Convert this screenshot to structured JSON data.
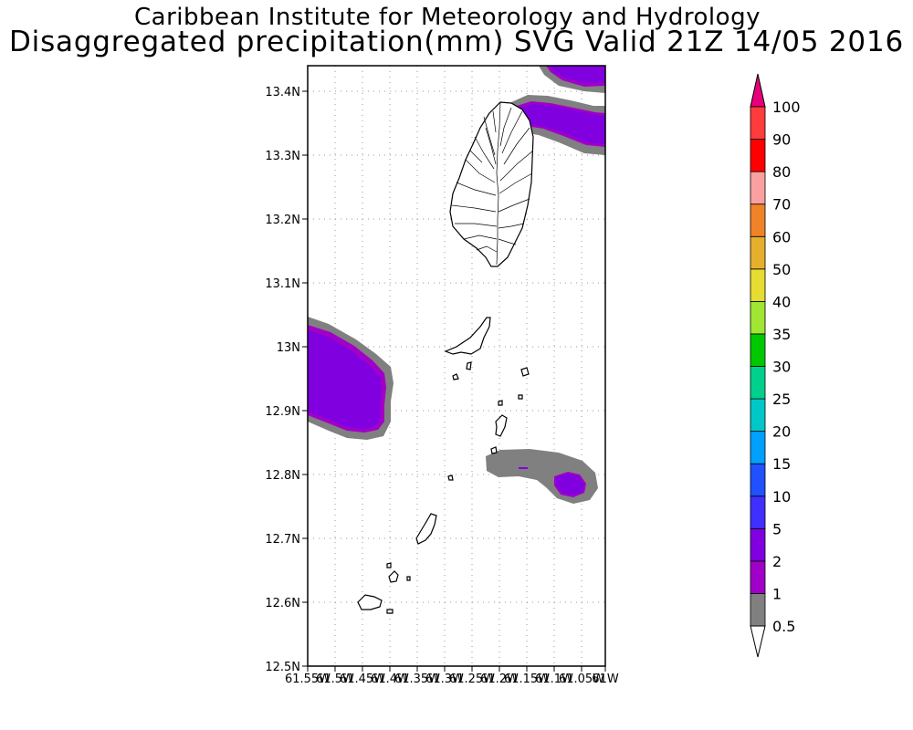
{
  "header": {
    "institution": "Caribbean Institute for Meteorology and Hydrology",
    "product": "Disaggregated precipitation(mm) SVG Valid 21Z 14/05 2016"
  },
  "map": {
    "lat_labels": [
      "13.4N",
      "13.3N",
      "13.2N",
      "13.1N",
      "13N",
      "12.9N",
      "12.8N",
      "12.7N",
      "12.6N",
      "12.5N"
    ],
    "lon_labels": [
      "61.55W",
      "61.5W",
      "61.45W",
      "61.4W",
      "61.35W",
      "61.3W",
      "61.25W",
      "61.2W",
      "61.15W",
      "61.1W",
      "61.05W",
      "61W"
    ],
    "lat_range": [
      12.5,
      13.44
    ],
    "lon_range": [
      -61.55,
      -61.0
    ],
    "grid": true
  },
  "colorbar": {
    "levels": [
      "0.5",
      "1",
      "2",
      "5",
      "10",
      "15",
      "20",
      "25",
      "30",
      "35",
      "40",
      "50",
      "60",
      "70",
      "80",
      "90",
      "100"
    ],
    "colors": [
      "#808080",
      "#a000c8",
      "#8000e0",
      "#4030ff",
      "#2050ff",
      "#00a0ff",
      "#00c8c8",
      "#00d08c",
      "#00c800",
      "#a0e632",
      "#e6dc32",
      "#e6af2d",
      "#f08228",
      "#faa0a0",
      "#ff0000",
      "#ff3c3c"
    ],
    "over_color": "#e8007a",
    "under_color": "#ffffff"
  }
}
